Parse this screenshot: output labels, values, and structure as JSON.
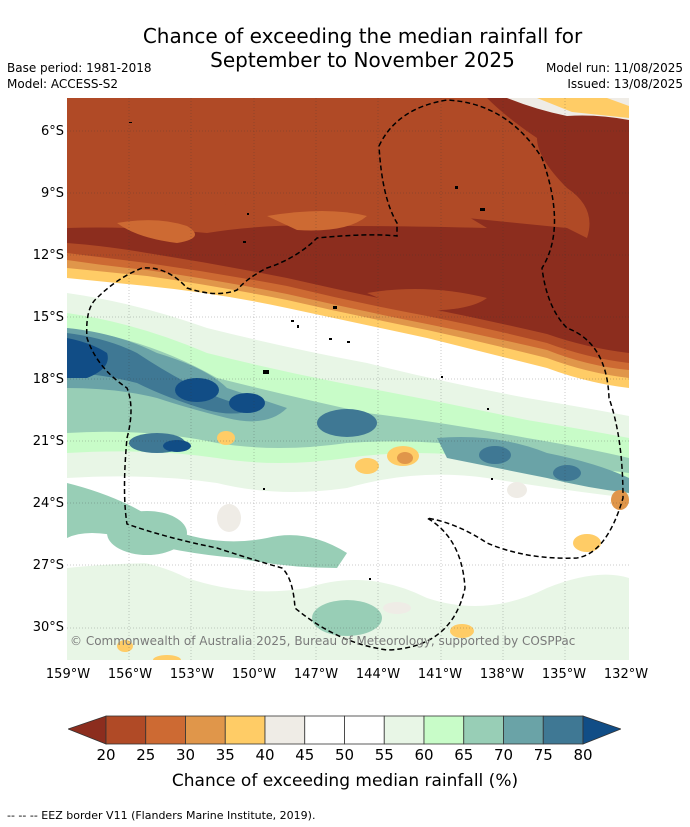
{
  "title_line1": "Chance of exceeding the median rainfall for",
  "title_line2": "September to November 2025",
  "base_period": "Base period: 1981-2018",
  "model": "Model: ACCESS-S2",
  "model_run": "Model run: 11/08/2025",
  "issued": "Issued: 13/08/2025",
  "y_ticks": [
    "6°S",
    "9°S",
    "12°S",
    "15°S",
    "18°S",
    "21°S",
    "24°S",
    "27°S",
    "30°S"
  ],
  "x_ticks": [
    "159°W",
    "156°W",
    "153°W",
    "150°W",
    "147°W",
    "144°W",
    "141°W",
    "138°W",
    "135°W",
    "132°W"
  ],
  "copyright": "© Commonwealth of Australia 2025, Bureau of Meteorology, supported by COSPPac",
  "colorbar": {
    "ticks": [
      "20",
      "25",
      "30",
      "35",
      "40",
      "45",
      "50",
      "55",
      "60",
      "65",
      "70",
      "75",
      "80"
    ],
    "label": "Chance of exceeding median rainfall (%)",
    "colors": [
      "#8c2d1e",
      "#b04a26",
      "#cd6a33",
      "#e0964a",
      "#ffcc66",
      "#efece6",
      "#ffffff",
      "#ffffff",
      "#e8f6e6",
      "#c8fcc8",
      "#98ceb6",
      "#6aa3a7",
      "#3f7894",
      "#114d86"
    ]
  },
  "footnote": "--  --  -- EEZ border V11 (Flanders Marine Institute, 2019)."
}
